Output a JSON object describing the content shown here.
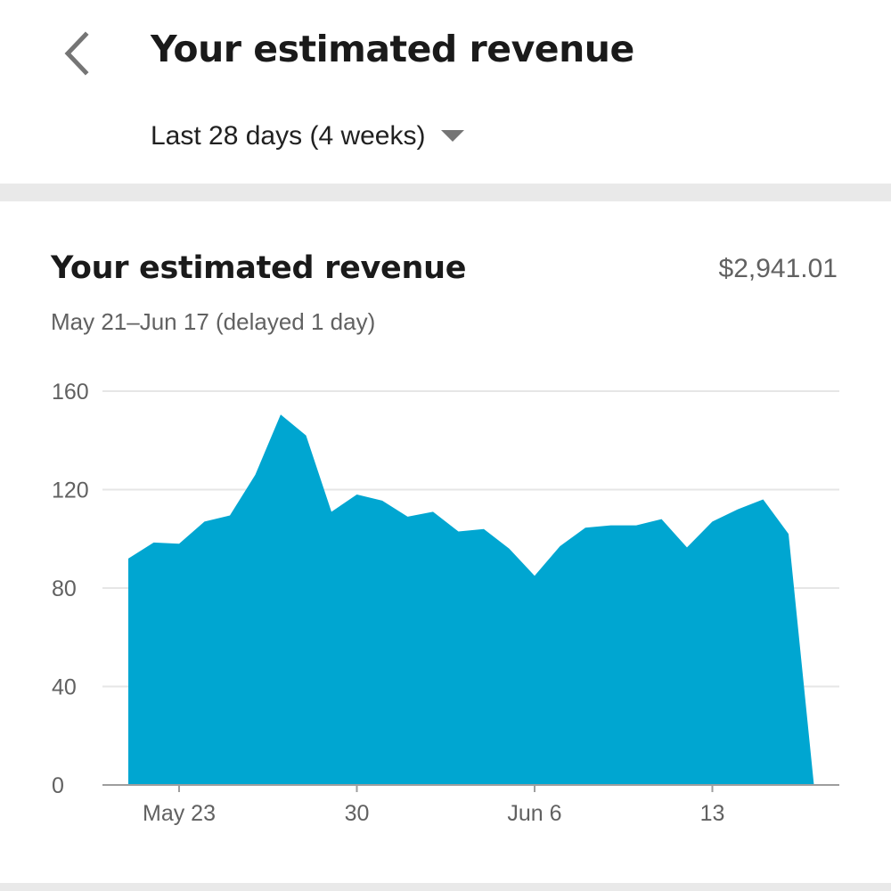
{
  "header": {
    "title": "Your estimated revenue",
    "period_label": "Last 28 days (4 weeks)",
    "back_icon": "chevron-left-icon",
    "dropdown_icon": "caret-down-icon"
  },
  "card": {
    "title": "Your estimated revenue",
    "total": "$2,941.01",
    "subtitle": "May 21–Jun 17 (delayed 1 day)"
  },
  "colors": {
    "area_fill": "#00a6d1",
    "gridline": "#e6e6e6",
    "axis": "#9e9e9e",
    "muted_text": "#616161"
  },
  "chart_data": {
    "type": "area",
    "x": [
      "May 21",
      "May 22",
      "May 23",
      "May 24",
      "May 25",
      "May 26",
      "May 27",
      "May 28",
      "May 29",
      "May 30",
      "May 31",
      "Jun 1",
      "Jun 2",
      "Jun 3",
      "Jun 4",
      "Jun 5",
      "Jun 6",
      "Jun 7",
      "Jun 8",
      "Jun 9",
      "Jun 10",
      "Jun 11",
      "Jun 12",
      "Jun 13",
      "Jun 14",
      "Jun 15",
      "Jun 16",
      "Jun 17"
    ],
    "series": [
      {
        "values": [
          92,
          98.5,
          98,
          107,
          109.5,
          126,
          150.5,
          142,
          111,
          118,
          115.5,
          109,
          111,
          103,
          104,
          96,
          85,
          97,
          104.5,
          105.5,
          105.5,
          108,
          96.5,
          107,
          112,
          116,
          102,
          0
        ]
      }
    ],
    "yticks": [
      "0",
      "40",
      "80",
      "120",
      "160"
    ],
    "ylim": [
      0,
      160
    ],
    "xtick_labels": [
      {
        "label": "May 23",
        "date": "May 23"
      },
      {
        "label": "30",
        "date": "May 30"
      },
      {
        "label": "Jun 6",
        "date": "Jun 6"
      },
      {
        "label": "13",
        "date": "Jun 13"
      }
    ],
    "grid": true,
    "legend": "none"
  }
}
